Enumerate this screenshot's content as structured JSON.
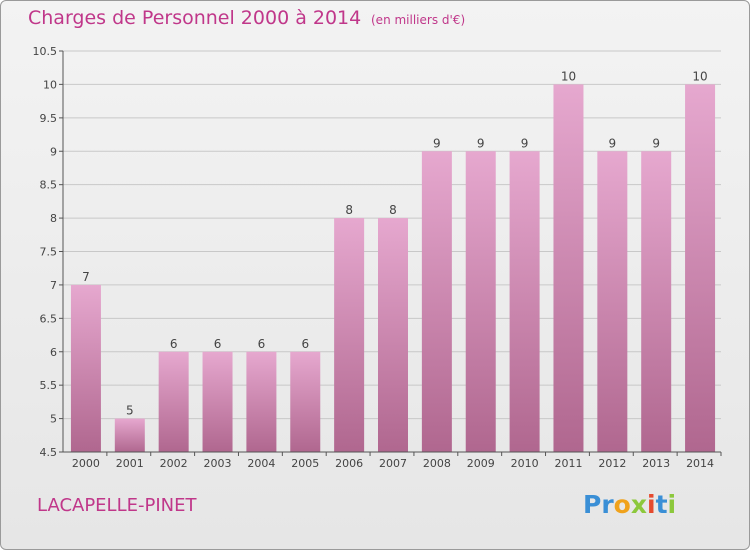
{
  "title": "Charges de Personnel 2000 à 2014",
  "subtitle": "(en milliers d'€)",
  "commune": "LACAPELLE-PINET",
  "logo": {
    "text": "Proxiti",
    "letters": [
      {
        "ch": "P",
        "color": "#3a8fd6"
      },
      {
        "ch": "r",
        "color": "#3a8fd6"
      },
      {
        "ch": "o",
        "color": "#f0a21c"
      },
      {
        "ch": "x",
        "color": "#8cc83c"
      },
      {
        "ch": "i",
        "color": "#e54a2e"
      },
      {
        "ch": "t",
        "color": "#3a8fd6"
      },
      {
        "ch": "i",
        "color": "#8cc83c"
      }
    ]
  },
  "colors": {
    "accent": "#c0378a",
    "bar_top": "#e6a8cf",
    "bar_bottom": "#b0678f",
    "grid": "#c8c8c8",
    "axis": "#555555"
  },
  "chart_data": {
    "type": "bar",
    "categories": [
      "2000",
      "2001",
      "2002",
      "2003",
      "2004",
      "2005",
      "2006",
      "2007",
      "2008",
      "2009",
      "2010",
      "2011",
      "2012",
      "2013",
      "2014"
    ],
    "values": [
      7,
      5,
      6,
      6,
      6,
      6,
      8,
      8,
      9,
      9,
      9,
      10,
      9,
      9,
      10
    ],
    "data_labels": [
      "7",
      "5",
      "6",
      "6",
      "6",
      "6",
      "8",
      "8",
      "9",
      "9",
      "9",
      "10",
      "9",
      "9",
      "10"
    ],
    "ylim": [
      4.5,
      10.5
    ],
    "yticks": [
      4.5,
      5,
      5.5,
      6,
      6.5,
      7,
      7.5,
      8,
      8.5,
      9,
      9.5,
      10,
      10.5
    ],
    "ytick_labels": [
      "4.5",
      "5",
      "5.5",
      "6",
      "6.5",
      "7",
      "7.5",
      "8",
      "8.5",
      "9",
      "9.5",
      "10",
      "10.5"
    ],
    "grid": true,
    "xlabel": "",
    "ylabel": ""
  }
}
